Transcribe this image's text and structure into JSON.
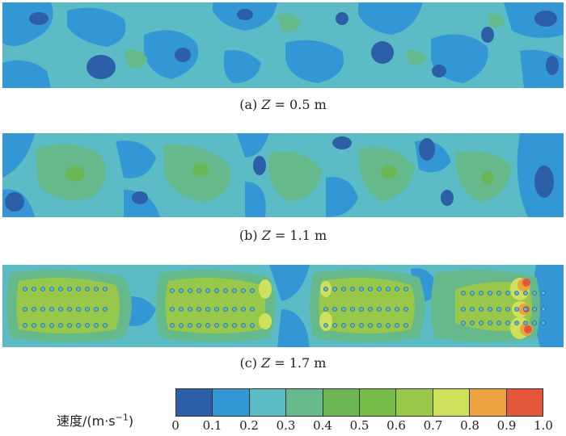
{
  "panels": [
    {
      "caption_prefix": "(a) ",
      "var": "Z",
      "caption_suffix": " = 0.5 m"
    },
    {
      "caption_prefix": "(b) ",
      "var": "Z",
      "caption_suffix": " = 1.1 m"
    },
    {
      "caption_prefix": "(c) ",
      "var": "Z",
      "caption_suffix": " = 1.7 m"
    }
  ],
  "colorbar": {
    "label": "速度/(m·s",
    "label_sup": "−1",
    "label_end": ")",
    "ticks": [
      "0",
      "0.1",
      "0.2",
      "0.3",
      "0.4",
      "0.5",
      "0.6",
      "0.7",
      "0.8",
      "0.9",
      "1.0"
    ],
    "colors": [
      "#2c5fa8",
      "#3397d6",
      "#5bbcc6",
      "#66b98a",
      "#6db655",
      "#74bb48",
      "#97c84a",
      "#cfe05a",
      "#eba23f",
      "#e3563a"
    ]
  },
  "field_colors": {
    "base": "#5bbcc6",
    "low": "#3397d6",
    "lowest": "#2c5fa8",
    "mid": "#66b98a",
    "high": "#6db655",
    "higher": "#97c84a",
    "peak": "#e3563a",
    "warm": "#eba23f",
    "yellow": "#cfe05a"
  }
}
